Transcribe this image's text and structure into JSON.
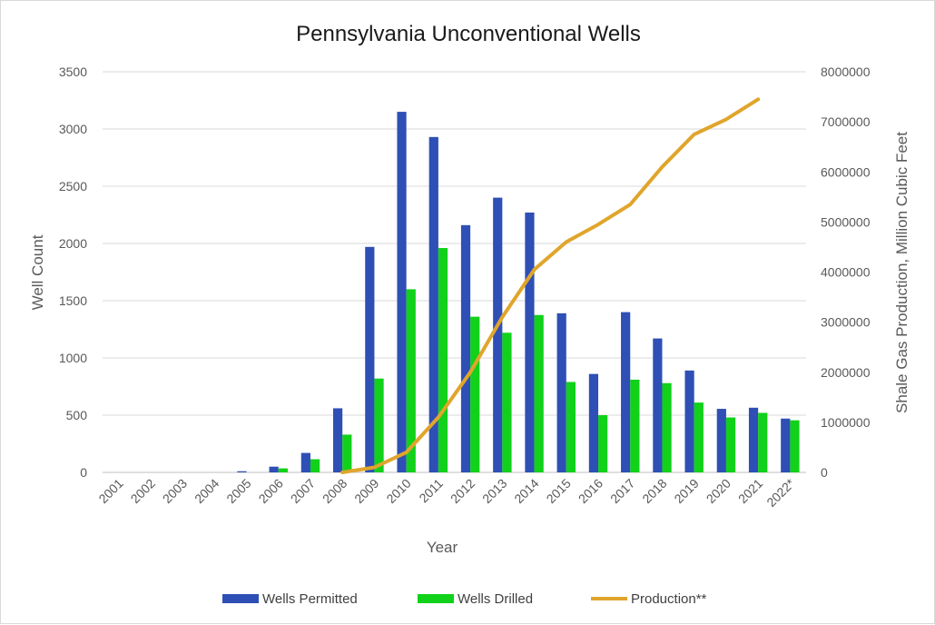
{
  "chart_data": {
    "type": "bar",
    "title": "Pennsylvania Unconventional Wells",
    "xlabel": "Year",
    "ylabel": "Well Count",
    "y2label": "Shale Gas Production, Million Cubic Feet",
    "ylim": [
      0,
      3500
    ],
    "y2lim": [
      0,
      8000000
    ],
    "yticks": [
      "0",
      "500",
      "1000",
      "1500",
      "2000",
      "2500",
      "3000",
      "3500"
    ],
    "y2ticks": [
      "0",
      "1000000",
      "2000000",
      "3000000",
      "4000000",
      "5000000",
      "6000000",
      "7000000",
      "8000000"
    ],
    "categories": [
      "2001",
      "2002",
      "2003",
      "2004",
      "2005",
      "2006",
      "2007",
      "2008",
      "2009",
      "2010",
      "2011",
      "2012",
      "2013",
      "2014",
      "2015",
      "2016",
      "2017",
      "2018",
      "2019",
      "2020",
      "2021",
      "2022*"
    ],
    "grid": true,
    "legend_position": "bottom",
    "series": [
      {
        "name": "Wells Permitted",
        "kind": "bar",
        "axis": "left",
        "color": "#2e4fb5",
        "values": [
          0,
          0,
          0,
          0,
          10,
          50,
          170,
          560,
          1970,
          3150,
          2930,
          2160,
          2400,
          2270,
          1390,
          860,
          1400,
          1170,
          890,
          555,
          565,
          470
        ]
      },
      {
        "name": "Wells Drilled",
        "kind": "bar",
        "axis": "left",
        "color": "#11d11a",
        "values": [
          0,
          0,
          0,
          0,
          0,
          35,
          115,
          330,
          820,
          1600,
          1960,
          1360,
          1220,
          1375,
          790,
          500,
          810,
          780,
          610,
          480,
          520,
          455
        ]
      },
      {
        "name": "Production**",
        "kind": "line",
        "axis": "right",
        "color": "#e0a52b",
        "values": [
          null,
          null,
          null,
          null,
          null,
          null,
          null,
          0,
          100000,
          400000,
          1100000,
          2000000,
          3100000,
          4050000,
          4600000,
          4950000,
          5350000,
          6100000,
          6750000,
          7050000,
          7450000,
          null
        ]
      }
    ]
  }
}
